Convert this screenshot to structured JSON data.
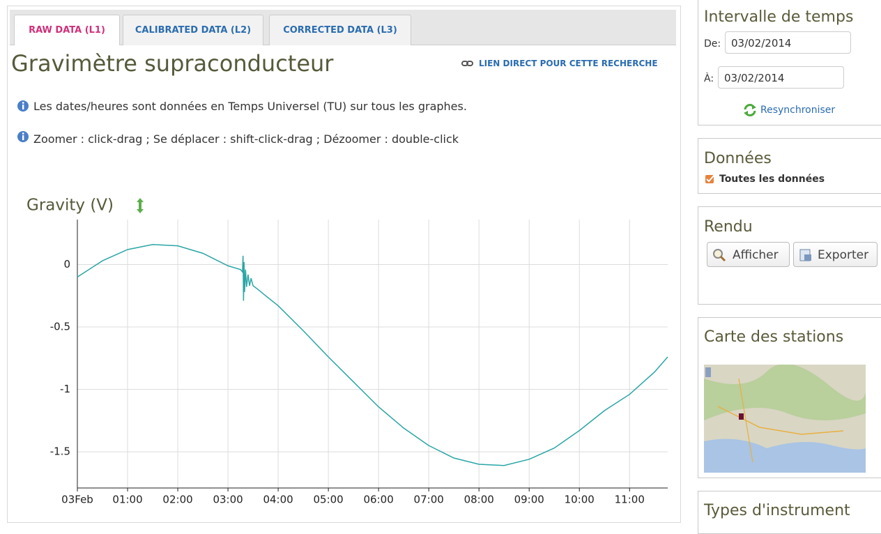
{
  "tabs": [
    "RAW DATA (L1)",
    "CALIBRATED DATA (L2)",
    "CORRECTED DATA (L3)"
  ],
  "heading": "Gravimètre supraconducteur",
  "direct_link": "LIEN DIRECT POUR CETTE RECHERCHE",
  "notes": [
    "Les dates/heures sont données en Temps Universel (TU) sur tous les graphes.",
    "Zoomer : click-drag ; Se déplacer : shift-click-drag ; Dézoomer : double-click"
  ],
  "chart_data": {
    "type": "line",
    "title": "Gravity (V)",
    "color": "#2aa5a5",
    "grid": true,
    "x": [
      0,
      0.5,
      1,
      1.5,
      2,
      2.5,
      3,
      3.25,
      3.29,
      3.3,
      3.31,
      3.32,
      3.33,
      3.35,
      3.37,
      3.4,
      3.43,
      3.46,
      3.5,
      3.6,
      3.75,
      4,
      4.5,
      5,
      5.5,
      6,
      6.5,
      7,
      7.5,
      8,
      8.5,
      9,
      9.5,
      10,
      10.5,
      11,
      11.5,
      11.76
    ],
    "values": [
      -0.1,
      0.03,
      0.12,
      0.16,
      0.15,
      0.09,
      -0.01,
      -0.04,
      -0.06,
      0.07,
      -0.29,
      0.02,
      -0.22,
      -0.04,
      -0.18,
      -0.08,
      -0.17,
      -0.11,
      -0.17,
      -0.2,
      -0.25,
      -0.33,
      -0.53,
      -0.74,
      -0.94,
      -1.14,
      -1.31,
      -1.45,
      -1.55,
      -1.6,
      -1.61,
      -1.56,
      -1.47,
      -1.33,
      -1.17,
      -1.04,
      -0.86,
      -0.74
    ],
    "xlim": [
      0,
      11.76
    ],
    "ylim": [
      -1.79,
      0.36
    ],
    "xticks": [
      {
        "value": 0,
        "label": "03Feb"
      },
      {
        "value": 1,
        "label": "01:00"
      },
      {
        "value": 2,
        "label": "02:00"
      },
      {
        "value": 3,
        "label": "03:00"
      },
      {
        "value": 4,
        "label": "04:00"
      },
      {
        "value": 5,
        "label": "05:00"
      },
      {
        "value": 6,
        "label": "06:00"
      },
      {
        "value": 7,
        "label": "07:00"
      },
      {
        "value": 8,
        "label": "08:00"
      },
      {
        "value": 9,
        "label": "09:00"
      },
      {
        "value": 10,
        "label": "10:00"
      },
      {
        "value": 11,
        "label": "11:00"
      }
    ],
    "yticks": [
      -1.5,
      -1,
      -0.5,
      0
    ]
  },
  "sidebar": {
    "time_interval": {
      "title": "Intervalle de temps",
      "from_label": "De:",
      "from_value": "03/02/2014",
      "to_label": "À:",
      "to_value": "03/02/2014",
      "resync": "Resynchroniser"
    },
    "data": {
      "title": "Données",
      "checkbox": "Toutes les données"
    },
    "render": {
      "title": "Rendu",
      "buttons": [
        "Afficher",
        "Exporter"
      ]
    },
    "map": {
      "title": "Carte des stations"
    },
    "instrument_types": {
      "title": "Types d'instrument"
    }
  }
}
